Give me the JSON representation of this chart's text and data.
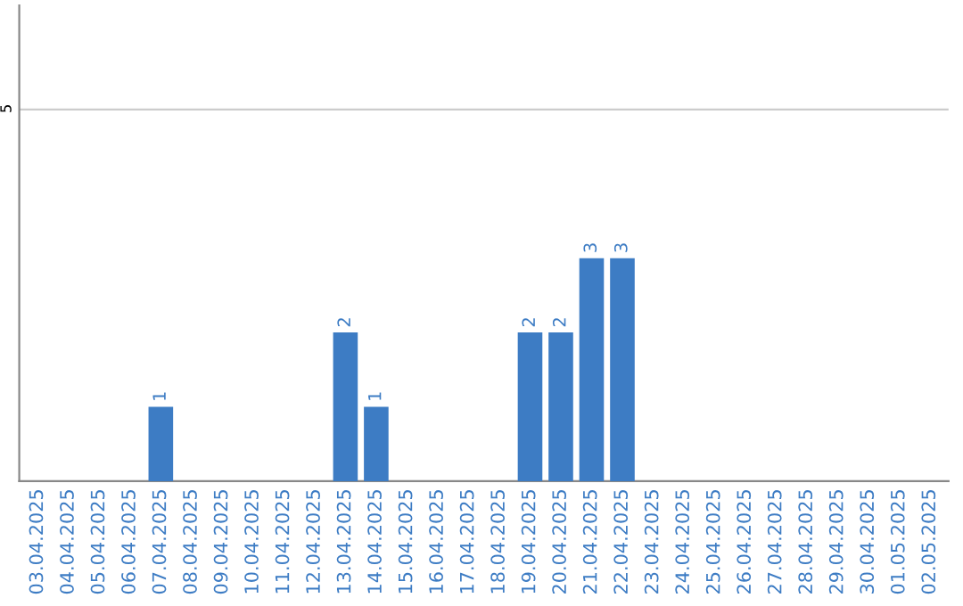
{
  "chart_data": {
    "type": "bar",
    "categories": [
      "03.04.2025",
      "04.04.2025",
      "05.04.2025",
      "06.04.2025",
      "07.04.2025",
      "08.04.2025",
      "09.04.2025",
      "10.04.2025",
      "11.04.2025",
      "12.04.2025",
      "13.04.2025",
      "14.04.2025",
      "15.04.2025",
      "16.04.2025",
      "17.04.2025",
      "18.04.2025",
      "19.04.2025",
      "20.04.2025",
      "21.04.2025",
      "22.04.2025",
      "23.04.2025",
      "24.04.2025",
      "25.04.2025",
      "26.04.2025",
      "27.04.2025",
      "28.04.2025",
      "29.04.2025",
      "30.04.2025",
      "01.05.2025",
      "02.05.2025"
    ],
    "values": [
      0,
      0,
      0,
      0,
      1,
      0,
      0,
      0,
      0,
      0,
      2,
      1,
      0,
      0,
      0,
      0,
      2,
      2,
      3,
      3,
      0,
      0,
      0,
      0,
      0,
      0,
      0,
      0,
      0,
      0
    ],
    "value_labels": [
      null,
      null,
      null,
      null,
      "1",
      null,
      null,
      null,
      null,
      null,
      "2",
      "1",
      null,
      null,
      null,
      null,
      "2",
      "2",
      "3",
      "3",
      null,
      null,
      null,
      null,
      null,
      null,
      null,
      null,
      null,
      null
    ],
    "color": "#3d7cc4",
    "ylim": [
      0,
      6.4
    ],
    "yticks": [
      5
    ],
    "grid": "y",
    "legend": false
  }
}
